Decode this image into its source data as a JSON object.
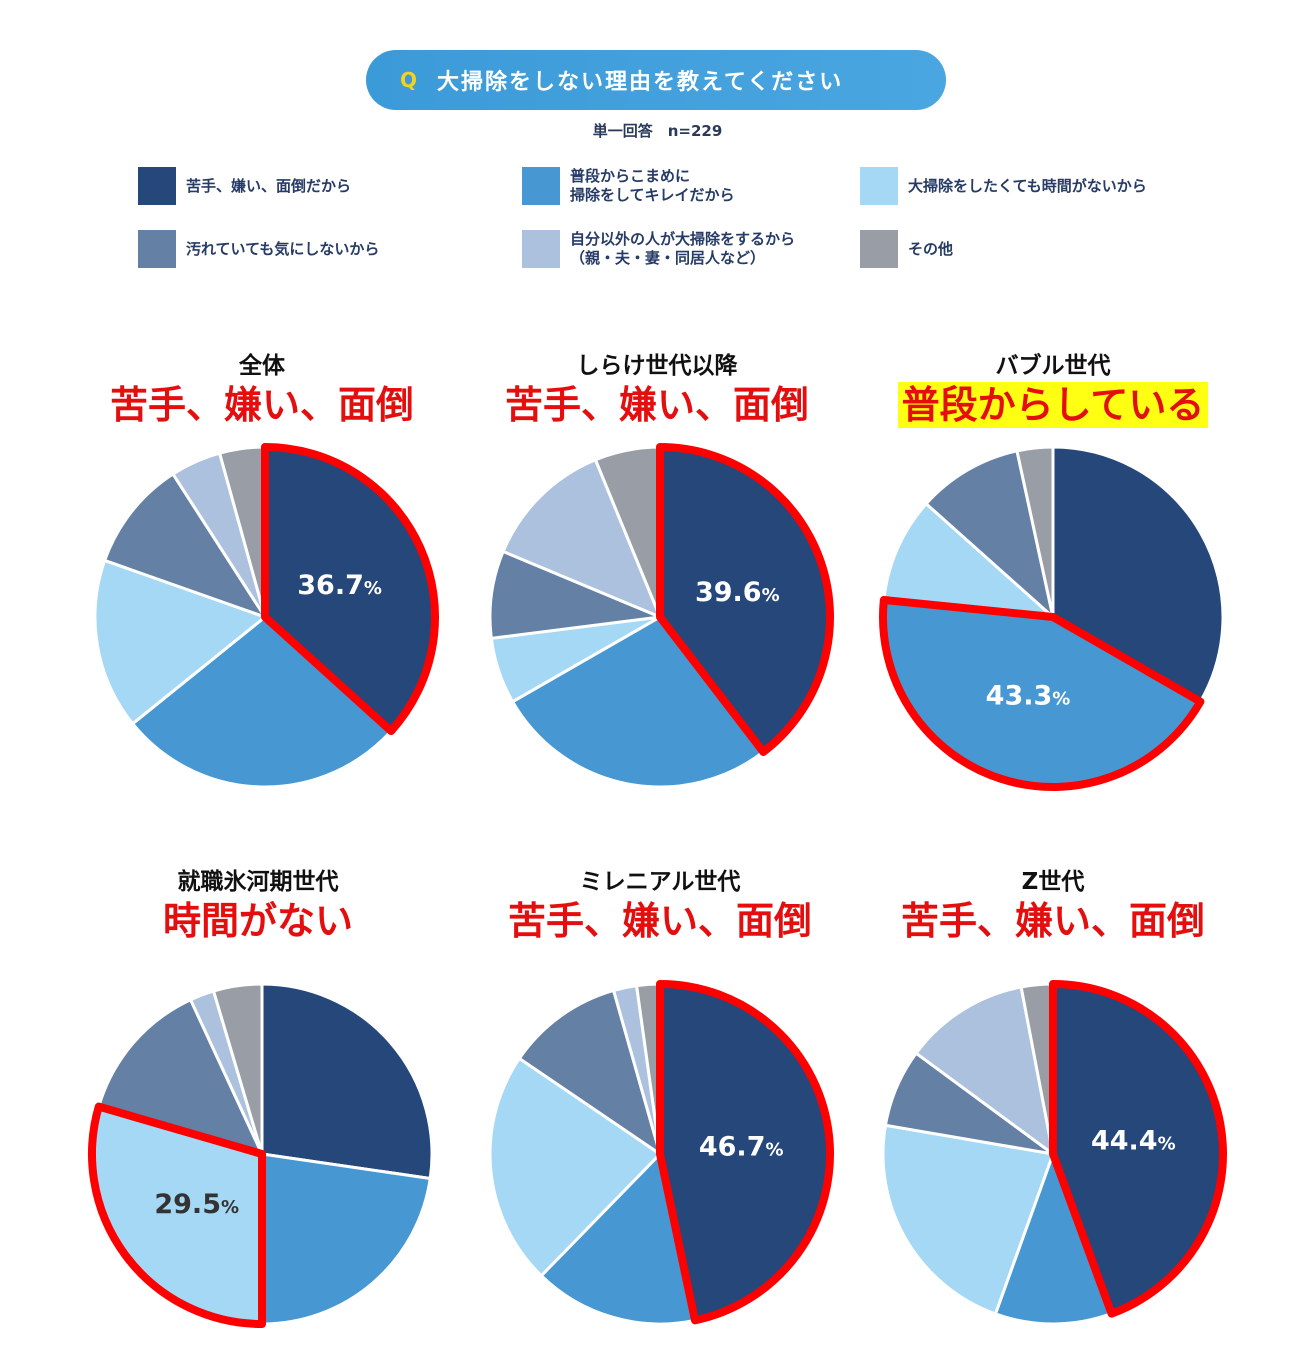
{
  "header": {
    "q_mark": "Q",
    "question": "大掃除をしない理由を教えてください",
    "subtitle": "単一回答　n=229"
  },
  "legend": [
    {
      "label": "苦手、嫌い、面倒だから",
      "color": "#26477a"
    },
    {
      "label": "普段からこまめに\n掃除をしてキレイだから",
      "color": "#4697d2"
    },
    {
      "label": "大掃除をしたくても時間がないから",
      "color": "#a5d8f4"
    },
    {
      "label": "汚れていても気にしないから",
      "color": "#6480a5"
    },
    {
      "label": "自分以外の人が大掃除をするから\n（親・夫・妻・同居人など）",
      "color": "#acc1de"
    },
    {
      "label": "その他",
      "color": "#999da6"
    }
  ],
  "colors": {
    "highlight_stroke": "#ff0000",
    "headline": "#e40e0e",
    "headline_bg": "#ffff14"
  },
  "chart_data": [
    {
      "type": "pie",
      "title": "全体",
      "headline": "苦手、嫌い、面倒",
      "categories": [
        "苦手、嫌い、面倒だから",
        "普段からこまめに掃除をしてキレイだから",
        "大掃除をしたくても時間がないから",
        "汚れていても気にしないから",
        "自分以外の人が大掃除をするから（親・夫・妻・同居人など）",
        "その他"
      ],
      "values": [
        36.7,
        27.5,
        16.2,
        10.5,
        4.8,
        4.3
      ],
      "highlight_index": 0,
      "label_value": "36.7",
      "label_unit": "%"
    },
    {
      "type": "pie",
      "title": "しらけ世代以降",
      "headline": "苦手、嫌い、面倒",
      "categories": [
        "苦手、嫌い、面倒だから",
        "普段からこまめに掃除をしてキレイだから",
        "大掃除をしたくても時間がないから",
        "汚れていても気にしないから",
        "自分以外の人が大掃除をするから（親・夫・妻・同居人など）",
        "その他"
      ],
      "values": [
        39.6,
        27.1,
        6.3,
        8.3,
        12.5,
        6.2
      ],
      "highlight_index": 0,
      "label_value": "39.6",
      "label_unit": "%"
    },
    {
      "type": "pie",
      "title": "バブル世代",
      "headline": "普段からしている",
      "headline_highlighted": true,
      "categories": [
        "苦手、嫌い、面倒だから",
        "普段からこまめに掃除をしてキレイだから",
        "大掃除をしたくても時間がないから",
        "汚れていても気にしないから",
        "自分以外の人が大掃除をするから（親・夫・妻・同居人など）",
        "その他"
      ],
      "values": [
        33.3,
        43.3,
        10.0,
        10.0,
        0.0,
        3.4
      ],
      "highlight_index": 1,
      "label_value": "43.3",
      "label_unit": "%"
    },
    {
      "type": "pie",
      "title": "就職氷河期世代",
      "headline": "時間がない",
      "categories": [
        "苦手、嫌い、面倒だから",
        "普段からこまめに掃除をしてキレイだから",
        "大掃除をしたくても時間がないから",
        "汚れていても気にしないから",
        "自分以外の人が大掃除をするから（親・夫・妻・同居人など）",
        "その他"
      ],
      "values": [
        27.3,
        22.7,
        29.5,
        13.6,
        2.3,
        4.6
      ],
      "highlight_index": 2,
      "label_value": "29.5",
      "label_unit": "%"
    },
    {
      "type": "pie",
      "title": "ミレニアル世代",
      "headline": "苦手、嫌い、面倒",
      "categories": [
        "苦手、嫌い、面倒だから",
        "普段からこまめに掃除をしてキレイだから",
        "大掃除をしたくても時間がないから",
        "汚れていても気にしないから",
        "自分以外の人が大掃除をするから（親・夫・妻・同居人など）",
        "その他"
      ],
      "values": [
        46.7,
        15.6,
        22.2,
        11.1,
        2.2,
        2.2
      ],
      "highlight_index": 0,
      "label_value": "46.7",
      "label_unit": "%"
    },
    {
      "type": "pie",
      "title": "Z世代",
      "headline": "苦手、嫌い、面倒",
      "categories": [
        "苦手、嫌い、面倒だから",
        "普段からこまめに掃除をしてキレイだから",
        "大掃除をしたくても時間がないから",
        "汚れていても気にしないから",
        "自分以外の人が大掃除をするから（親・夫・妻・同居人など）",
        "その他"
      ],
      "values": [
        44.4,
        11.1,
        22.2,
        7.4,
        11.9,
        3.0
      ],
      "highlight_index": 0,
      "label_value": "44.4",
      "label_unit": "%"
    }
  ]
}
